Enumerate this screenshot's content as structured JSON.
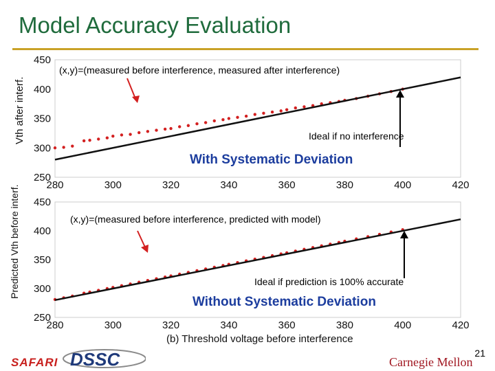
{
  "slide": {
    "title": "Model Accuracy Evaluation",
    "page_number": "21",
    "logos": {
      "left": "SAFARI",
      "middle": "DSSC",
      "right": "Carnegie Mellon"
    },
    "accent_color": "#c9a227",
    "title_color": "#1f6b3c"
  },
  "chart_data": [
    {
      "type": "scatter",
      "ylabel": "Vth after interf.",
      "xlabel": "",
      "xlim": [
        280,
        420
      ],
      "ylim": [
        250,
        450
      ],
      "xticks": [
        280,
        300,
        320,
        340,
        360,
        380,
        400,
        420
      ],
      "yticks": [
        250,
        300,
        350,
        400,
        450
      ],
      "annotation_top": "(x,y)=(measured before interference, measured after interference)",
      "annotation_ideal": "Ideal if no interference",
      "annotation_caption": "With Systematic Deviation",
      "ideal_line": {
        "x": [
          280,
          420
        ],
        "y": [
          280,
          420
        ]
      },
      "series": [
        {
          "values_x": [
            280,
            283,
            286,
            290,
            292,
            295,
            298,
            300,
            303,
            306,
            309,
            312,
            315,
            318,
            320,
            323,
            326,
            329,
            332,
            335,
            338,
            340,
            343,
            346,
            349,
            352,
            355,
            358,
            360,
            363,
            366,
            369,
            372,
            375,
            378,
            380,
            384,
            388,
            392,
            396,
            400
          ],
          "values_y": [
            300,
            301,
            303,
            312,
            313,
            315,
            317,
            320,
            322,
            323,
            326,
            328,
            330,
            332,
            333,
            336,
            338,
            341,
            343,
            346,
            348,
            350,
            352,
            354,
            357,
            359,
            361,
            363,
            365,
            368,
            370,
            372,
            375,
            377,
            379,
            381,
            384,
            388,
            392,
            396,
            400
          ]
        }
      ],
      "marker_color": "#d32020"
    },
    {
      "type": "scatter",
      "ylabel": "Predicted Vth before interf.",
      "xlabel": "(b) Threshold voltage before interference",
      "xlim": [
        280,
        420
      ],
      "ylim": [
        250,
        450
      ],
      "xticks": [
        280,
        300,
        320,
        340,
        360,
        380,
        400,
        420
      ],
      "yticks": [
        250,
        300,
        350,
        400,
        450
      ],
      "annotation_top": "(x,y)=(measured before interference, predicted with model)",
      "annotation_ideal": "Ideal if prediction is 100% accurate",
      "annotation_caption": "Without Systematic Deviation",
      "ideal_line": {
        "x": [
          280,
          420
        ],
        "y": [
          280,
          420
        ]
      },
      "series": [
        {
          "values_x": [
            280,
            283,
            286,
            290,
            292,
            295,
            298,
            300,
            303,
            306,
            309,
            312,
            315,
            318,
            320,
            323,
            326,
            329,
            332,
            335,
            338,
            340,
            343,
            346,
            349,
            352,
            355,
            358,
            360,
            363,
            366,
            369,
            372,
            375,
            378,
            380,
            384,
            388,
            392,
            396,
            400
          ],
          "values_y": [
            281,
            284,
            287,
            292,
            294,
            297,
            300,
            302,
            305,
            308,
            311,
            314,
            317,
            320,
            322,
            325,
            328,
            331,
            334,
            337,
            340,
            342,
            345,
            348,
            351,
            354,
            357,
            360,
            362,
            365,
            368,
            371,
            374,
            377,
            380,
            382,
            386,
            390,
            394,
            398,
            402
          ]
        }
      ],
      "marker_color": "#d32020"
    }
  ]
}
